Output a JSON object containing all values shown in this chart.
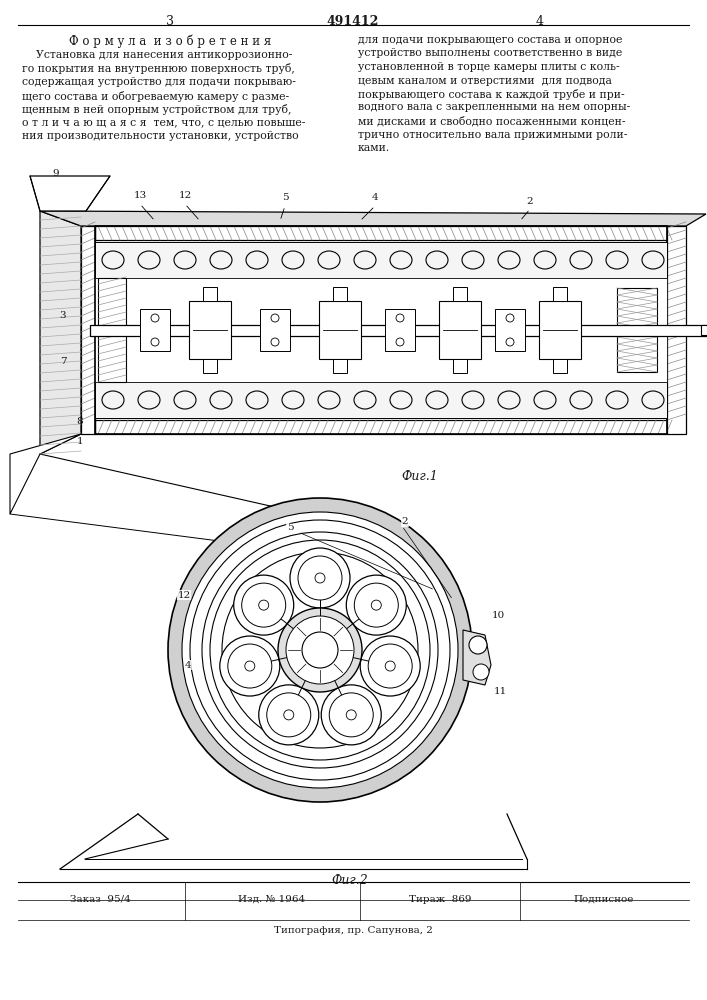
{
  "patent_number": "491412",
  "page_left": "3",
  "page_right": "4",
  "formula_title": "Ф о р м у л а  и з о б р е т е н и я",
  "left_text_lines": [
    "    Установка для нанесения антикоррозионно-",
    "го покрытия на внутреннюю поверхность труб,",
    "содержащая устройство для подачи покрываю-",
    "щего состава и обогреваемую камеру с разме-",
    "щенным в ней опорным устройством для труб,",
    "о т л и ч а ю щ а я с я  тем, что, с целью повыше-",
    "ния производительности установки, устройство"
  ],
  "right_text_lines": [
    "для подачи покрывающего состава и опорное",
    "устройство выполнены соответственно в виде",
    "установленной в торце камеры плиты с коль-",
    "цевым каналом и отверстиями  для подвода",
    "покрывающего состава к каждой трубе и при-",
    "водного вала с закрепленными на нем опорны-",
    "ми дисками и свободно посаженными концен-",
    "трично относительно вала прижимными роли-",
    "ками."
  ],
  "fig1_caption": "Фиг.1",
  "fig2_caption": "Фиг.2",
  "footer_items": [
    "Заказ  95/4",
    "Изд. № 1964",
    "Тираж  869",
    "Подписное"
  ],
  "footer_bottom": "Типография, пр. Сапунова, 2",
  "bg_color": "#ffffff",
  "text_color": "#1a1a1a",
  "hatch_color": "#888888"
}
